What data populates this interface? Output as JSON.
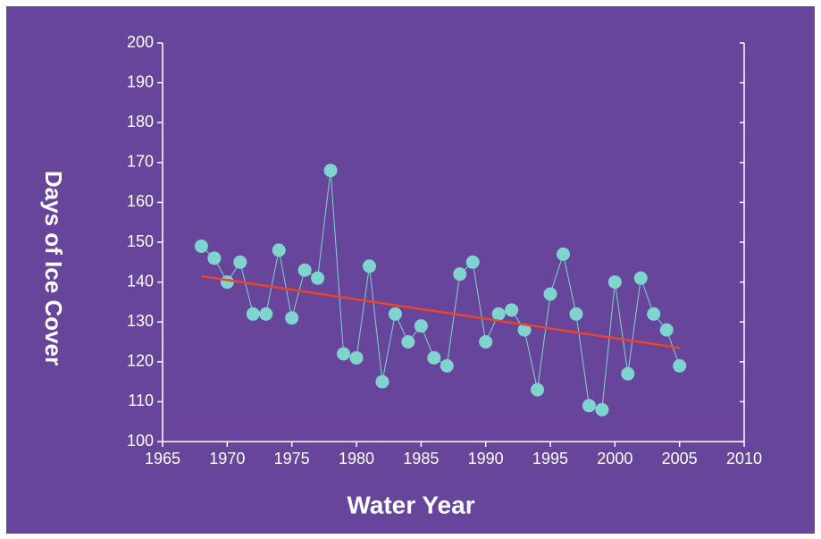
{
  "chart_data": {
    "type": "line",
    "xlabel": "Water Year",
    "ylabel": "Days of Ice Cover",
    "x": [
      1968,
      1969,
      1970,
      1971,
      1972,
      1973,
      1974,
      1975,
      1976,
      1977,
      1978,
      1979,
      1980,
      1981,
      1982,
      1983,
      1984,
      1985,
      1986,
      1987,
      1988,
      1989,
      1990,
      1991,
      1992,
      1993,
      1994,
      1995,
      1996,
      1997,
      1998,
      1999,
      2000,
      2001,
      2002,
      2003,
      2004,
      2005
    ],
    "series": [
      {
        "color": "#80d4d0",
        "marker": true,
        "values": [
          149,
          146,
          140,
          145,
          132,
          132,
          148,
          131,
          143,
          141,
          168,
          122,
          121,
          144,
          115,
          132,
          125,
          129,
          121,
          119,
          142,
          145,
          125,
          132,
          133,
          128,
          113,
          137,
          147,
          132,
          109,
          108,
          140,
          117,
          141,
          132,
          128,
          119
        ]
      },
      {
        "color": "#e8452c",
        "marker": false,
        "x": [
          1968,
          2005
        ],
        "values": [
          141.5,
          123.5
        ]
      }
    ],
    "xlim": [
      1965,
      2010
    ],
    "xticks": [
      1965,
      1970,
      1975,
      1980,
      1985,
      1990,
      1995,
      2000,
      2005,
      2010
    ],
    "ylim": [
      100,
      200
    ],
    "yticks": [
      100,
      110,
      120,
      130,
      140,
      150,
      160,
      170,
      180,
      190,
      200
    ]
  }
}
